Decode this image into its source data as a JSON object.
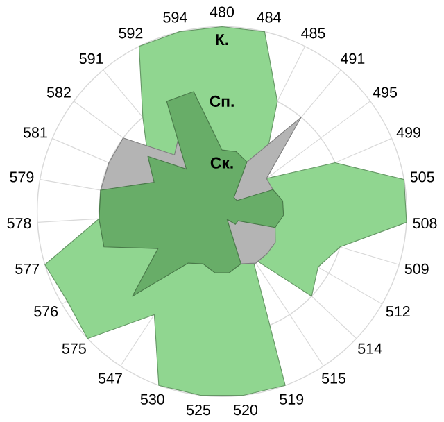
{
  "chart_data": {
    "type": "radar",
    "grid": true,
    "ylim": [
      0,
      3
    ],
    "yticks": [
      {
        "value": 1,
        "label": "Ск."
      },
      {
        "value": 2,
        "label": "Сп."
      },
      {
        "value": 3,
        "label": "К."
      }
    ],
    "categories": [
      "480",
      "484",
      "485",
      "491",
      "495",
      "499",
      "505",
      "508",
      "509",
      "512",
      "514",
      "515",
      "519",
      "520",
      "525",
      "530",
      "547",
      "575",
      "576",
      "577",
      "578",
      "579",
      "581",
      "582",
      "591",
      "592",
      "594"
    ],
    "series": [
      {
        "color": "#90d690",
        "values": [
          3,
          3,
          2,
          1.1,
          0.9,
          2,
          3,
          3,
          2,
          1.8,
          2,
          0.9,
          3,
          3,
          3,
          3,
          2,
          3,
          2.9,
          3,
          2,
          2,
          1.5,
          1.5,
          2,
          3,
          3
        ]
      },
      {
        "color": "#b4b4b4",
        "values": [
          0.9,
          0.9,
          0.9,
          2,
          0.9,
          0.9,
          0.9,
          0.9,
          0.9,
          1,
          1,
          1,
          0.9,
          0.9,
          0.9,
          0.9,
          0.9,
          0.9,
          0.9,
          0.9,
          1.8,
          2,
          2,
          2,
          1.2,
          1.5,
          0.9
        ]
      },
      {
        "color": "#68ad68",
        "values": [
          1,
          1,
          0.9,
          0.3,
          0.3,
          0.9,
          1,
          1,
          0.9,
          0.3,
          0.3,
          0.15,
          0.9,
          1,
          1,
          0.9,
          1,
          2,
          1.2,
          2,
          2,
          2,
          1.2,
          1.5,
          0.9,
          2,
          2
        ]
      }
    ]
  }
}
